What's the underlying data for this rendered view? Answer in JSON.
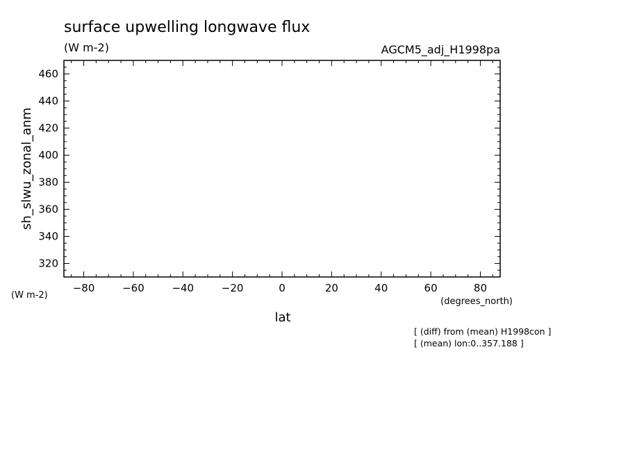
{
  "chart_data": {
    "type": "line",
    "title": "surface upwelling longwave flux",
    "subtitle": "(W m-2)",
    "dataset_label": "AGCM5_adj_H1998pa",
    "xlabel": "lat",
    "xunits": "(degrees_north)",
    "ylabel": "sh_slwu_zonal_anm",
    "yunits": "(W m-2)",
    "xlim": [
      -88,
      88
    ],
    "ylim": [
      310,
      470
    ],
    "xticks": [
      -80,
      -60,
      -40,
      -20,
      0,
      20,
      40,
      60,
      80
    ],
    "yticks": [
      320,
      340,
      360,
      380,
      400,
      420,
      440,
      460
    ],
    "series": [],
    "grid": false,
    "notes": [
      "[ (diff) from (mean) H1998con ]",
      "[ (mean) lon:0..357.188 ]"
    ]
  }
}
